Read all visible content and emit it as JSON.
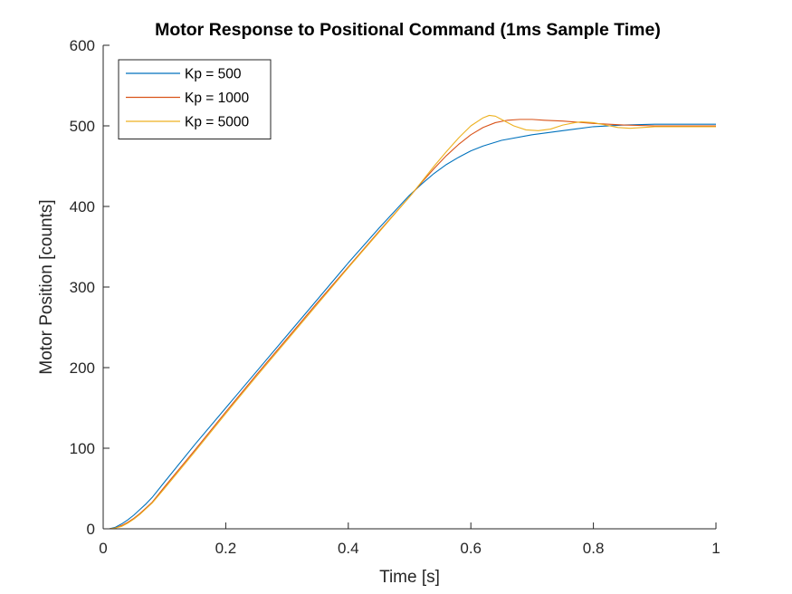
{
  "chart_data": {
    "type": "line",
    "title": "Motor Response to Positional Command (1ms Sample Time)",
    "xlabel": "Time [s]",
    "ylabel": "Motor Position [counts]",
    "xlim": [
      0,
      1
    ],
    "ylim": [
      0,
      600
    ],
    "x_ticks": [
      0,
      0.2,
      0.4,
      0.6,
      0.8,
      1
    ],
    "x_tick_labels": [
      "0",
      "0.2",
      "0.4",
      "0.6",
      "0.8",
      "1"
    ],
    "y_ticks": [
      0,
      100,
      200,
      300,
      400,
      500,
      600
    ],
    "y_tick_labels": [
      "0",
      "100",
      "200",
      "300",
      "400",
      "500",
      "600"
    ],
    "grid": false,
    "legend_position": "top-left",
    "series": [
      {
        "name": "Kp = 500",
        "color": "#0072BD",
        "points": [
          [
            0,
            0
          ],
          [
            0.01,
            0
          ],
          [
            0.02,
            2
          ],
          [
            0.03,
            6
          ],
          [
            0.04,
            11
          ],
          [
            0.05,
            17
          ],
          [
            0.06,
            24
          ],
          [
            0.07,
            31
          ],
          [
            0.08,
            39
          ],
          [
            0.1,
            58
          ],
          [
            0.15,
            105
          ],
          [
            0.2,
            150
          ],
          [
            0.25,
            195
          ],
          [
            0.3,
            240
          ],
          [
            0.35,
            285
          ],
          [
            0.4,
            330
          ],
          [
            0.45,
            373
          ],
          [
            0.5,
            414
          ],
          [
            0.52,
            428
          ],
          [
            0.54,
            441
          ],
          [
            0.56,
            452
          ],
          [
            0.58,
            461
          ],
          [
            0.6,
            469
          ],
          [
            0.62,
            475
          ],
          [
            0.65,
            482
          ],
          [
            0.7,
            489
          ],
          [
            0.75,
            494
          ],
          [
            0.8,
            499
          ],
          [
            0.85,
            501
          ],
          [
            0.9,
            502
          ],
          [
            1.0,
            502
          ]
        ]
      },
      {
        "name": "Kp = 1000",
        "color": "#D95319",
        "points": [
          [
            0,
            0
          ],
          [
            0.01,
            0
          ],
          [
            0.02,
            1
          ],
          [
            0.03,
            4
          ],
          [
            0.04,
            8
          ],
          [
            0.05,
            13
          ],
          [
            0.06,
            19
          ],
          [
            0.07,
            26
          ],
          [
            0.08,
            33
          ],
          [
            0.1,
            52
          ],
          [
            0.15,
            98
          ],
          [
            0.2,
            145
          ],
          [
            0.25,
            191
          ],
          [
            0.3,
            236
          ],
          [
            0.35,
            281
          ],
          [
            0.4,
            325
          ],
          [
            0.45,
            369
          ],
          [
            0.5,
            412
          ],
          [
            0.52,
            430
          ],
          [
            0.54,
            447
          ],
          [
            0.56,
            463
          ],
          [
            0.58,
            477
          ],
          [
            0.6,
            489
          ],
          [
            0.62,
            498
          ],
          [
            0.64,
            504
          ],
          [
            0.66,
            507
          ],
          [
            0.68,
            508
          ],
          [
            0.7,
            508
          ],
          [
            0.72,
            507
          ],
          [
            0.75,
            506
          ],
          [
            0.8,
            503
          ],
          [
            0.85,
            501
          ],
          [
            0.9,
            500
          ],
          [
            1.0,
            500
          ]
        ]
      },
      {
        "name": "Kp = 5000",
        "color": "#EDB120",
        "points": [
          [
            0,
            0
          ],
          [
            0.01,
            0
          ],
          [
            0.02,
            1
          ],
          [
            0.03,
            3
          ],
          [
            0.04,
            7
          ],
          [
            0.05,
            12
          ],
          [
            0.06,
            18
          ],
          [
            0.07,
            25
          ],
          [
            0.08,
            32
          ],
          [
            0.1,
            50
          ],
          [
            0.15,
            96
          ],
          [
            0.2,
            143
          ],
          [
            0.25,
            189
          ],
          [
            0.3,
            234
          ],
          [
            0.35,
            279
          ],
          [
            0.4,
            324
          ],
          [
            0.45,
            368
          ],
          [
            0.5,
            412
          ],
          [
            0.52,
            431
          ],
          [
            0.54,
            450
          ],
          [
            0.56,
            468
          ],
          [
            0.58,
            485
          ],
          [
            0.6,
            500
          ],
          [
            0.62,
            510
          ],
          [
            0.63,
            513
          ],
          [
            0.64,
            512
          ],
          [
            0.65,
            508
          ],
          [
            0.67,
            500
          ],
          [
            0.69,
            495
          ],
          [
            0.71,
            494
          ],
          [
            0.73,
            496
          ],
          [
            0.75,
            501
          ],
          [
            0.77,
            504
          ],
          [
            0.78,
            505
          ],
          [
            0.8,
            504
          ],
          [
            0.82,
            501
          ],
          [
            0.84,
            498
          ],
          [
            0.86,
            497
          ],
          [
            0.88,
            498
          ],
          [
            0.9,
            499
          ],
          [
            1.0,
            499
          ]
        ]
      }
    ]
  }
}
